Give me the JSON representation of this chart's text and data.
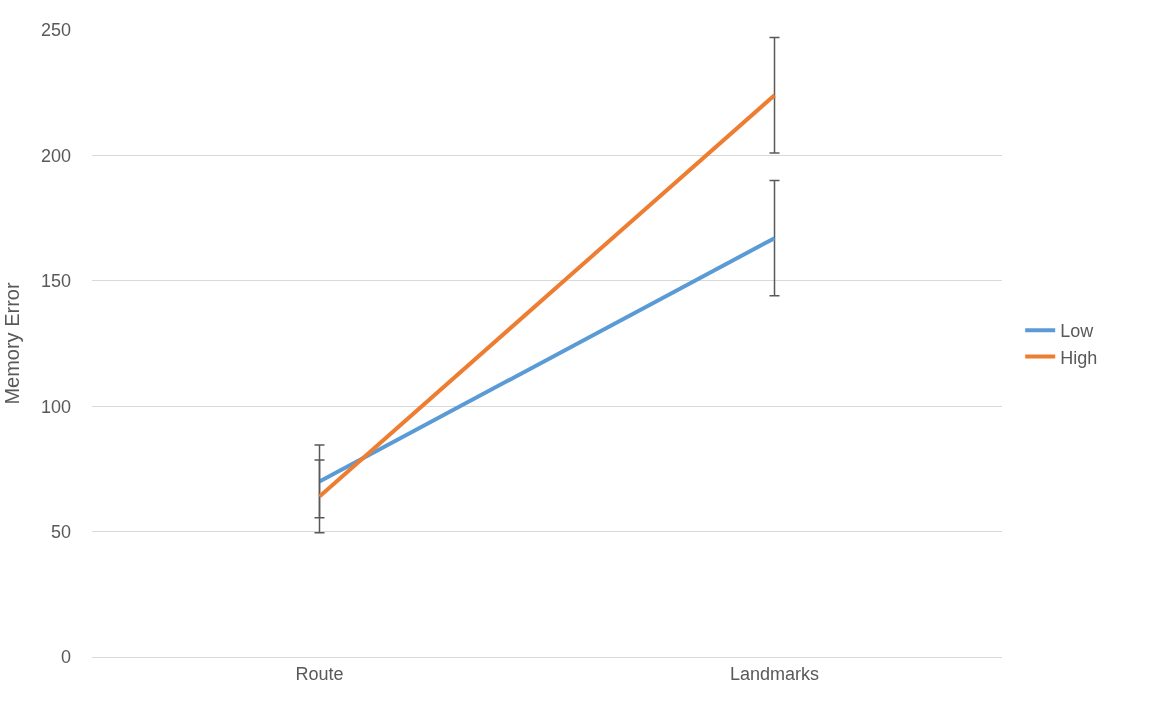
{
  "chart_data": {
    "type": "line",
    "ylabel": "Memory Error",
    "categories": [
      "Route",
      "Landmarks"
    ],
    "series": [
      {
        "name": "Low",
        "color": "#5b9bd5",
        "values": [
          70,
          167
        ],
        "errors": [
          14.5,
          23
        ]
      },
      {
        "name": "High",
        "color": "#ed7d31",
        "values": [
          64,
          224
        ],
        "errors": [
          14.5,
          23
        ]
      }
    ],
    "ylim": [
      0,
      250
    ],
    "yticks": [
      0,
      50,
      100,
      150,
      200,
      250
    ],
    "grid": "y",
    "legend": "right",
    "marker": "none",
    "line_style": "solid"
  }
}
